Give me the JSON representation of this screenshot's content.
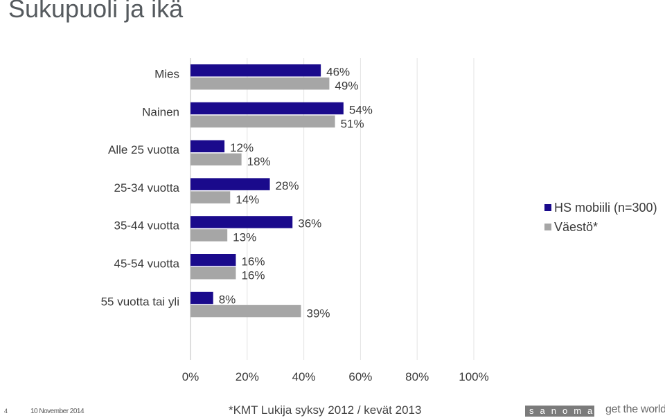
{
  "title": "Sukupuoli ja ikä",
  "legend": {
    "items": [
      {
        "label": "HS mobiili (n=300)",
        "color": "#1a0a8c"
      },
      {
        "label": "Väestö*",
        "color": "#a6a6a6"
      }
    ]
  },
  "footer": {
    "page_number": "4",
    "date": "10 November 2014",
    "source": "*KMT Lukija syksy 2012 / kevät 2013",
    "brand": "sanoma",
    "tagline": "get the world"
  },
  "chart_data": {
    "type": "bar",
    "orientation": "horizontal",
    "categories": [
      "Mies",
      "Nainen",
      "Alle 25 vuotta",
      "25-34 vuotta",
      "35-44 vuotta",
      "45-54 vuotta",
      "55 vuotta tai yli"
    ],
    "series": [
      {
        "name": "HS mobiili (n=300)",
        "color": "#1a0a8c",
        "values": [
          46,
          54,
          12,
          28,
          36,
          16,
          8
        ]
      },
      {
        "name": "Väestö*",
        "color": "#a6a6a6",
        "values": [
          49,
          51,
          18,
          14,
          13,
          16,
          39
        ]
      }
    ],
    "xlim": [
      0,
      100
    ],
    "x_ticks": [
      "0%",
      "20%",
      "40%",
      "60%",
      "80%",
      "100%"
    ],
    "value_suffix": "%",
    "grid": true,
    "legend_position": "right"
  }
}
